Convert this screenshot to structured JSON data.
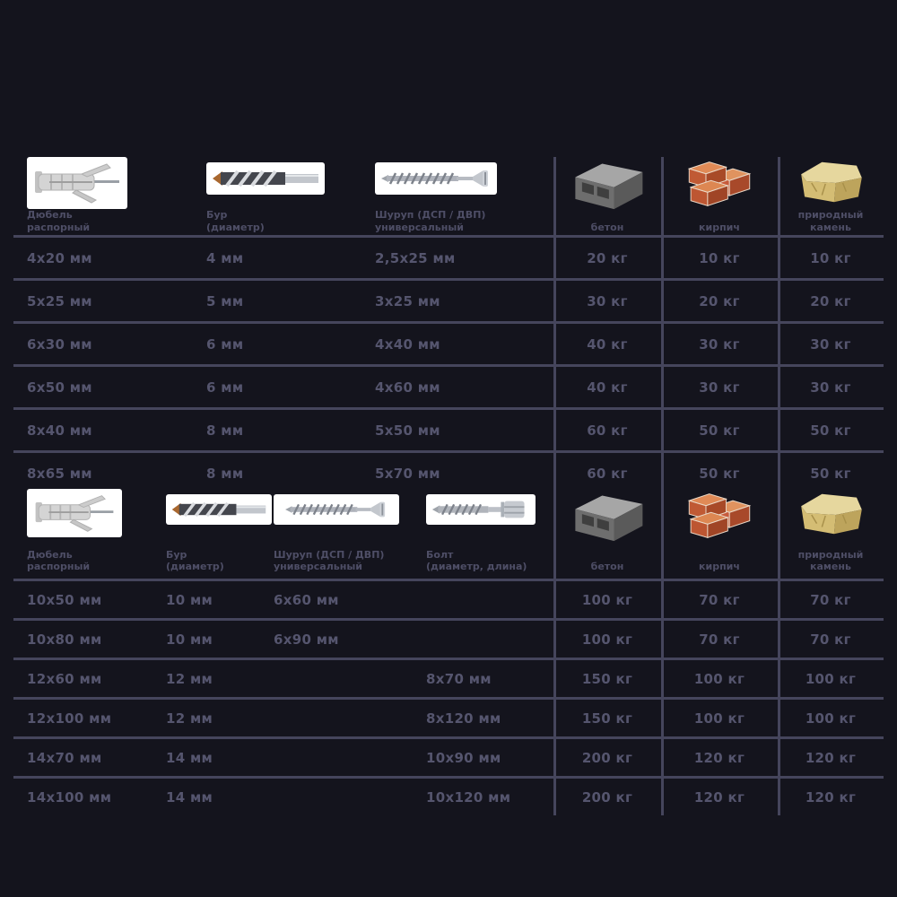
{
  "colors": {
    "bg": "#14141d",
    "line": "#45455c",
    "text": "#55556e",
    "label": "#4e4e66",
    "brick": "#c75b3c",
    "stone": "#e2d094",
    "concrete": "#8d8d8d",
    "metal": "#b9bdc4",
    "copper": "#a8672f"
  },
  "chart_data": [
    {
      "type": "table",
      "columns": [
        {
          "id": "dowel",
          "label": "Дюбель\nраспорный"
        },
        {
          "id": "drill",
          "label": "Бур\n(диаметр)"
        },
        {
          "id": "screw",
          "label": "Шуруп (ДСП / ДВП)\nуниверсальный"
        },
        {
          "id": "concrete",
          "label": "бетон"
        },
        {
          "id": "brick",
          "label": "кирпич"
        },
        {
          "id": "stone",
          "label": "природный камень"
        }
      ],
      "rows": [
        [
          "4x20 мм",
          "4 мм",
          "2,5x25 мм",
          "20 кг",
          "10 кг",
          "10 кг"
        ],
        [
          "5x25 мм",
          "5 мм",
          "3x25 мм",
          "30 кг",
          "20 кг",
          "20 кг"
        ],
        [
          "6x30 мм",
          "6 мм",
          "4x40 мм",
          "40 кг",
          "30 кг",
          "30 кг"
        ],
        [
          "6x50 мм",
          "6 мм",
          "4x60 мм",
          "40 кг",
          "30 кг",
          "30 кг"
        ],
        [
          "8x40 мм",
          "8 мм",
          "5x50 мм",
          "60 кг",
          "50 кг",
          "50 кг"
        ],
        [
          "8x65 мм",
          "8 мм",
          "5x70 мм",
          "60 кг",
          "50 кг",
          "50 кг"
        ]
      ]
    },
    {
      "type": "table",
      "columns": [
        {
          "id": "dowel",
          "label": "Дюбель\nраспорный"
        },
        {
          "id": "drill",
          "label": "Бур\n(диаметр)"
        },
        {
          "id": "screw",
          "label": "Шуруп (ДСП / ДВП)\nуниверсальный"
        },
        {
          "id": "bolt",
          "label": "Болт\n(диаметр, длина)"
        },
        {
          "id": "concrete",
          "label": "бетон"
        },
        {
          "id": "brick",
          "label": "кирпич"
        },
        {
          "id": "stone",
          "label": "природный камень"
        }
      ],
      "rows": [
        [
          "10x50 мм",
          "10 мм",
          "6x60 мм",
          "",
          "100 кг",
          "70 кг",
          "70 кг"
        ],
        [
          "10x80 мм",
          "10 мм",
          "6x90 мм",
          "",
          "100 кг",
          "70 кг",
          "70 кг"
        ],
        [
          "12x60 мм",
          "12 мм",
          "",
          "8x70 мм",
          "150 кг",
          "100 кг",
          "100 кг"
        ],
        [
          "12x100 мм",
          "12 мм",
          "",
          "8x120 мм",
          "150 кг",
          "100 кг",
          "100 кг"
        ],
        [
          "14x70 мм",
          "14 мм",
          "",
          "10x90 мм",
          "200 кг",
          "120 кг",
          "120 кг"
        ],
        [
          "14x100 мм",
          "14 мм",
          "",
          "10x120 мм",
          "200 кг",
          "120 кг",
          "120 кг"
        ]
      ]
    }
  ]
}
